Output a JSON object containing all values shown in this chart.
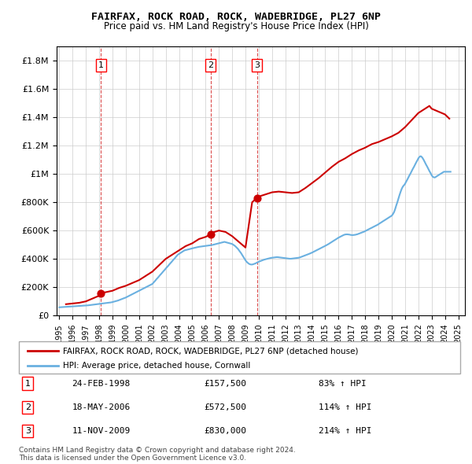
{
  "title": "FAIRFAX, ROCK ROAD, ROCK, WADEBRIDGE, PL27 6NP",
  "subtitle": "Price paid vs. HM Land Registry's House Price Index (HPI)",
  "legend_house": "FAIRFAX, ROCK ROAD, ROCK, WADEBRIDGE, PL27 6NP (detached house)",
  "legend_hpi": "HPI: Average price, detached house, Cornwall",
  "footnote": "Contains HM Land Registry data © Crown copyright and database right 2024.\nThis data is licensed under the Open Government Licence v3.0.",
  "transactions": [
    {
      "num": 1,
      "date": "24-FEB-1998",
      "price": 157500,
      "pct": "83%",
      "year": 1998.13
    },
    {
      "num": 2,
      "date": "18-MAY-2006",
      "price": 572500,
      "pct": "114%",
      "year": 2006.38
    },
    {
      "num": 3,
      "date": "11-NOV-2009",
      "price": 830000,
      "pct": "214%",
      "year": 2009.86
    }
  ],
  "vline_years": [
    1998.13,
    2006.38,
    2009.86
  ],
  "hpi_color": "#6ab0e0",
  "price_color": "#cc0000",
  "ylim": [
    0,
    1900000
  ],
  "xlim_start": 1995,
  "xlim_end": 2025.5,
  "xticks": [
    1995,
    1996,
    1997,
    1998,
    1999,
    2000,
    2001,
    2002,
    2003,
    2004,
    2005,
    2006,
    2007,
    2008,
    2009,
    2010,
    2011,
    2012,
    2013,
    2014,
    2015,
    2016,
    2017,
    2018,
    2019,
    2020,
    2021,
    2022,
    2023,
    2024,
    2025
  ],
  "yticks": [
    0,
    200000,
    400000,
    600000,
    800000,
    1000000,
    1200000,
    1400000,
    1600000,
    1800000
  ],
  "hpi_data": {
    "years": [
      1995.0,
      1995.08,
      1995.17,
      1995.25,
      1995.33,
      1995.42,
      1995.5,
      1995.58,
      1995.67,
      1995.75,
      1995.83,
      1995.92,
      1996.0,
      1996.08,
      1996.17,
      1996.25,
      1996.33,
      1996.42,
      1996.5,
      1996.58,
      1996.67,
      1996.75,
      1996.83,
      1996.92,
      1997.0,
      1997.08,
      1997.17,
      1997.25,
      1997.33,
      1997.42,
      1997.5,
      1997.58,
      1997.67,
      1997.75,
      1997.83,
      1997.92,
      1998.0,
      1998.08,
      1998.17,
      1998.25,
      1998.33,
      1998.42,
      1998.5,
      1998.58,
      1998.67,
      1998.75,
      1998.83,
      1998.92,
      1999.0,
      1999.08,
      1999.17,
      1999.25,
      1999.33,
      1999.42,
      1999.5,
      1999.58,
      1999.67,
      1999.75,
      1999.83,
      1999.92,
      2000.0,
      2000.08,
      2000.17,
      2000.25,
      2000.33,
      2000.42,
      2000.5,
      2000.58,
      2000.67,
      2000.75,
      2000.83,
      2000.92,
      2001.0,
      2001.08,
      2001.17,
      2001.25,
      2001.33,
      2001.42,
      2001.5,
      2001.58,
      2001.67,
      2001.75,
      2001.83,
      2001.92,
      2002.0,
      2002.08,
      2002.17,
      2002.25,
      2002.33,
      2002.42,
      2002.5,
      2002.58,
      2002.67,
      2002.75,
      2002.83,
      2002.92,
      2003.0,
      2003.08,
      2003.17,
      2003.25,
      2003.33,
      2003.42,
      2003.5,
      2003.58,
      2003.67,
      2003.75,
      2003.83,
      2003.92,
      2004.0,
      2004.08,
      2004.17,
      2004.25,
      2004.33,
      2004.42,
      2004.5,
      2004.58,
      2004.67,
      2004.75,
      2004.83,
      2004.92,
      2005.0,
      2005.08,
      2005.17,
      2005.25,
      2005.33,
      2005.42,
      2005.5,
      2005.58,
      2005.67,
      2005.75,
      2005.83,
      2005.92,
      2006.0,
      2006.08,
      2006.17,
      2006.25,
      2006.33,
      2006.42,
      2006.5,
      2006.58,
      2006.67,
      2006.75,
      2006.83,
      2006.92,
      2007.0,
      2007.08,
      2007.17,
      2007.25,
      2007.33,
      2007.42,
      2007.5,
      2007.58,
      2007.67,
      2007.75,
      2007.83,
      2007.92,
      2008.0,
      2008.08,
      2008.17,
      2008.25,
      2008.33,
      2008.42,
      2008.5,
      2008.58,
      2008.67,
      2008.75,
      2008.83,
      2008.92,
      2009.0,
      2009.08,
      2009.17,
      2009.25,
      2009.33,
      2009.42,
      2009.5,
      2009.58,
      2009.67,
      2009.75,
      2009.83,
      2009.92,
      2010.0,
      2010.08,
      2010.17,
      2010.25,
      2010.33,
      2010.42,
      2010.5,
      2010.58,
      2010.67,
      2010.75,
      2010.83,
      2010.92,
      2011.0,
      2011.08,
      2011.17,
      2011.25,
      2011.33,
      2011.42,
      2011.5,
      2011.58,
      2011.67,
      2011.75,
      2011.83,
      2011.92,
      2012.0,
      2012.08,
      2012.17,
      2012.25,
      2012.33,
      2012.42,
      2012.5,
      2012.58,
      2012.67,
      2012.75,
      2012.83,
      2012.92,
      2013.0,
      2013.08,
      2013.17,
      2013.25,
      2013.33,
      2013.42,
      2013.5,
      2013.58,
      2013.67,
      2013.75,
      2013.83,
      2013.92,
      2014.0,
      2014.08,
      2014.17,
      2014.25,
      2014.33,
      2014.42,
      2014.5,
      2014.58,
      2014.67,
      2014.75,
      2014.83,
      2014.92,
      2015.0,
      2015.08,
      2015.17,
      2015.25,
      2015.33,
      2015.42,
      2015.5,
      2015.58,
      2015.67,
      2015.75,
      2015.83,
      2015.92,
      2016.0,
      2016.08,
      2016.17,
      2016.25,
      2016.33,
      2016.42,
      2016.5,
      2016.58,
      2016.67,
      2016.75,
      2016.83,
      2016.92,
      2017.0,
      2017.08,
      2017.17,
      2017.25,
      2017.33,
      2017.42,
      2017.5,
      2017.58,
      2017.67,
      2017.75,
      2017.83,
      2017.92,
      2018.0,
      2018.08,
      2018.17,
      2018.25,
      2018.33,
      2018.42,
      2018.5,
      2018.58,
      2018.67,
      2018.75,
      2018.83,
      2018.92,
      2019.0,
      2019.08,
      2019.17,
      2019.25,
      2019.33,
      2019.42,
      2019.5,
      2019.58,
      2019.67,
      2019.75,
      2019.83,
      2019.92,
      2020.0,
      2020.08,
      2020.17,
      2020.25,
      2020.33,
      2020.42,
      2020.5,
      2020.58,
      2020.67,
      2020.75,
      2020.83,
      2020.92,
      2021.0,
      2021.08,
      2021.17,
      2021.25,
      2021.33,
      2021.42,
      2021.5,
      2021.58,
      2021.67,
      2021.75,
      2021.83,
      2021.92,
      2022.0,
      2022.08,
      2022.17,
      2022.25,
      2022.33,
      2022.42,
      2022.5,
      2022.58,
      2022.67,
      2022.75,
      2022.83,
      2022.92,
      2023.0,
      2023.08,
      2023.17,
      2023.25,
      2023.33,
      2023.42,
      2023.5,
      2023.58,
      2023.67,
      2023.75,
      2023.83,
      2023.92,
      2024.0,
      2024.08,
      2024.17,
      2024.25,
      2024.33,
      2024.42
    ],
    "values": [
      58000,
      58500,
      59000,
      59500,
      60000,
      60500,
      61000,
      61500,
      62000,
      62500,
      63000,
      63500,
      64000,
      64500,
      65000,
      65500,
      66000,
      66500,
      67000,
      67500,
      68000,
      68500,
      69000,
      69500,
      70000,
      71000,
      72000,
      73000,
      74000,
      75000,
      76000,
      77000,
      78000,
      79000,
      80000,
      81000,
      82000,
      83000,
      84000,
      85000,
      86000,
      87000,
      88000,
      89000,
      90000,
      91000,
      92000,
      93000,
      95000,
      97000,
      99000,
      101000,
      103000,
      106000,
      109000,
      112000,
      115000,
      118000,
      121000,
      124000,
      127000,
      131000,
      135000,
      139000,
      143000,
      147000,
      151000,
      155000,
      159000,
      163000,
      167000,
      171000,
      175000,
      179000,
      183000,
      187000,
      191000,
      195000,
      199000,
      203000,
      207000,
      211000,
      215000,
      219000,
      223000,
      232000,
      241000,
      250000,
      259000,
      268000,
      277000,
      286000,
      295000,
      304000,
      313000,
      322000,
      331000,
      340000,
      349000,
      358000,
      367000,
      376000,
      385000,
      394000,
      403000,
      412000,
      421000,
      430000,
      435000,
      440000,
      445000,
      450000,
      455000,
      460000,
      462000,
      464000,
      466000,
      468000,
      470000,
      472000,
      474000,
      476000,
      478000,
      480000,
      482000,
      484000,
      485000,
      486000,
      487000,
      488000,
      489000,
      490000,
      491000,
      492000,
      493000,
      494000,
      495000,
      496000,
      498000,
      500000,
      502000,
      504000,
      506000,
      508000,
      510000,
      512000,
      514000,
      516000,
      518000,
      520000,
      518000,
      516000,
      514000,
      512000,
      510000,
      508000,
      505000,
      500000,
      494000,
      488000,
      480000,
      472000,
      462000,
      452000,
      440000,
      428000,
      415000,
      402000,
      390000,
      380000,
      372000,
      366000,
      362000,
      360000,
      360000,
      362000,
      365000,
      368000,
      372000,
      376000,
      380000,
      383000,
      386000,
      389000,
      392000,
      395000,
      397000,
      399000,
      401000,
      403000,
      405000,
      407000,
      408000,
      409000,
      410000,
      411000,
      412000,
      412000,
      411000,
      410000,
      409000,
      408000,
      407000,
      406000,
      405000,
      404000,
      403000,
      402000,
      401000,
      401000,
      402000,
      403000,
      404000,
      405000,
      406000,
      407000,
      408000,
      410000,
      413000,
      416000,
      419000,
      422000,
      425000,
      428000,
      431000,
      434000,
      437000,
      440000,
      444000,
      448000,
      452000,
      456000,
      460000,
      464000,
      468000,
      472000,
      476000,
      480000,
      484000,
      488000,
      492000,
      496000,
      500000,
      505000,
      510000,
      515000,
      520000,
      525000,
      530000,
      535000,
      540000,
      545000,
      550000,
      554000,
      558000,
      562000,
      566000,
      570000,
      572000,
      573000,
      573000,
      572000,
      571000,
      569000,
      568000,
      568000,
      569000,
      570000,
      572000,
      574000,
      577000,
      580000,
      583000,
      586000,
      589000,
      592000,
      596000,
      600000,
      604000,
      608000,
      612000,
      616000,
      620000,
      624000,
      628000,
      632000,
      636000,
      640000,
      645000,
      650000,
      655000,
      660000,
      665000,
      670000,
      675000,
      680000,
      685000,
      690000,
      695000,
      700000,
      705000,
      715000,
      730000,
      750000,
      775000,
      800000,
      825000,
      850000,
      875000,
      895000,
      910000,
      920000,
      930000,
      945000,
      960000,
      975000,
      990000,
      1005000,
      1020000,
      1035000,
      1050000,
      1065000,
      1080000,
      1095000,
      1110000,
      1120000,
      1125000,
      1120000,
      1110000,
      1095000,
      1080000,
      1065000,
      1050000,
      1035000,
      1020000,
      1005000,
      990000,
      980000,
      975000,
      975000,
      980000,
      985000,
      990000,
      995000,
      1000000,
      1005000,
      1010000,
      1015000,
      1015000,
      1015000,
      1015000,
      1015000,
      1015000,
      1015000
    ]
  },
  "price_data": {
    "years": [
      1995.5,
      1996.0,
      1996.5,
      1997.0,
      1997.5,
      1998.0,
      1998.13,
      1999.0,
      1999.5,
      2000.0,
      2000.5,
      2001.0,
      2001.5,
      2002.0,
      2002.5,
      2003.0,
      2003.5,
      2004.0,
      2004.5,
      2005.0,
      2005.5,
      2006.0,
      2006.38,
      2006.5,
      2006.67,
      2007.0,
      2007.5,
      2008.0,
      2008.5,
      2009.0,
      2009.5,
      2009.86,
      2010.0,
      2010.5,
      2011.0,
      2011.5,
      2012.0,
      2012.5,
      2013.0,
      2013.5,
      2014.0,
      2014.5,
      2015.0,
      2015.5,
      2016.0,
      2016.5,
      2017.0,
      2017.5,
      2018.0,
      2018.5,
      2019.0,
      2019.5,
      2020.0,
      2020.5,
      2021.0,
      2021.5,
      2022.0,
      2022.5,
      2022.83,
      2023.0,
      2023.5,
      2024.0,
      2024.33
    ],
    "values": [
      80000,
      85000,
      90000,
      100000,
      120000,
      140000,
      157500,
      175000,
      195000,
      210000,
      230000,
      250000,
      280000,
      310000,
      355000,
      400000,
      430000,
      460000,
      490000,
      510000,
      540000,
      555000,
      572500,
      585000,
      590000,
      600000,
      590000,
      560000,
      520000,
      480000,
      800000,
      830000,
      840000,
      855000,
      870000,
      875000,
      870000,
      865000,
      870000,
      900000,
      935000,
      970000,
      1010000,
      1050000,
      1085000,
      1110000,
      1140000,
      1165000,
      1185000,
      1210000,
      1225000,
      1245000,
      1265000,
      1290000,
      1330000,
      1380000,
      1430000,
      1460000,
      1480000,
      1460000,
      1440000,
      1420000,
      1390000
    ]
  }
}
